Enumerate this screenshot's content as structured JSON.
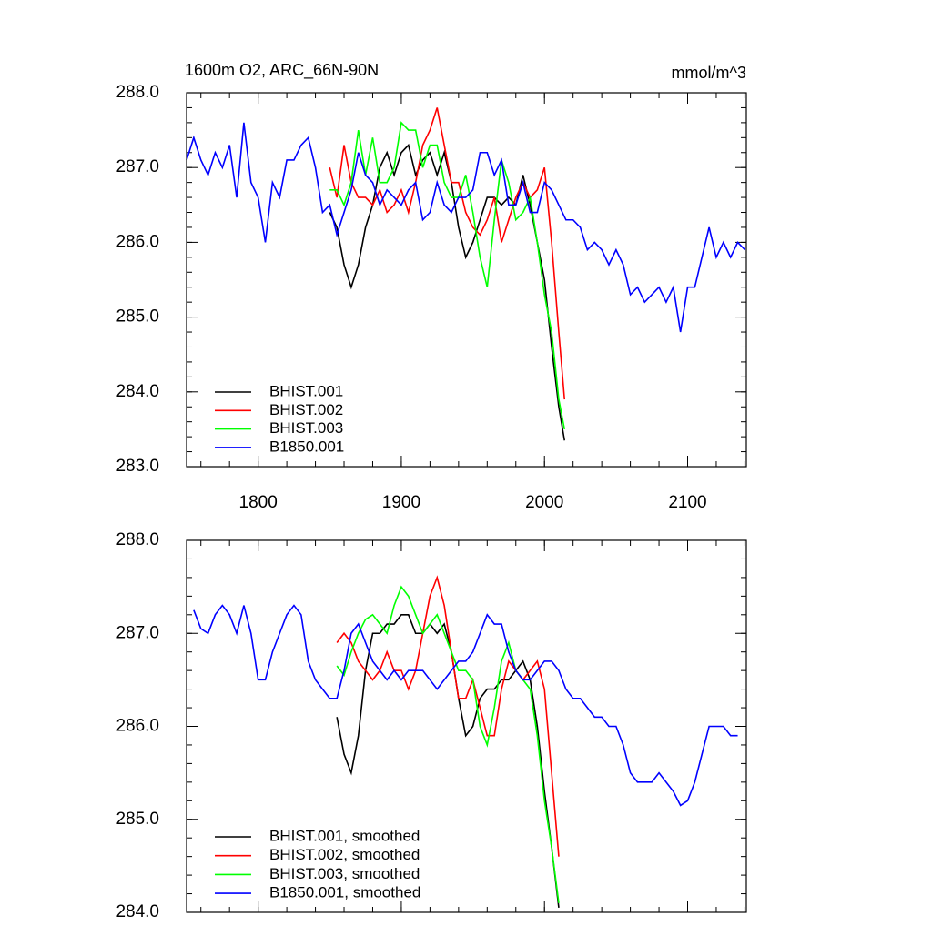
{
  "chart_data": [
    {
      "type": "line",
      "title": "1600m O2, ARC_66N-90N",
      "units": "mmol/m^3",
      "xlim": [
        1750,
        2141
      ],
      "xticks": [
        1800,
        1900,
        2000,
        2100
      ],
      "ylim": [
        283,
        288
      ],
      "yticks": [
        {
          "value": 283,
          "label": "283.0"
        },
        {
          "value": 284,
          "label": "284.0"
        },
        {
          "value": 285,
          "label": "285.0"
        },
        {
          "value": 286,
          "label": "286.0"
        },
        {
          "value": 287,
          "label": "287.0"
        },
        {
          "value": 288,
          "label": "288.0"
        }
      ],
      "legend": "lower left",
      "series": [
        {
          "name": "BHIST.001",
          "color": "#000000",
          "x": [
            1850,
            1855,
            1860,
            1865,
            1870,
            1875,
            1880,
            1885,
            1890,
            1895,
            1900,
            1905,
            1910,
            1915,
            1920,
            1925,
            1930,
            1935,
            1940,
            1945,
            1950,
            1955,
            1960,
            1965,
            1970,
            1975,
            1980,
            1985,
            1990,
            1995,
            2000,
            2005,
            2010,
            2014
          ],
          "values": [
            286.4,
            286.2,
            285.7,
            285.4,
            285.7,
            286.2,
            286.5,
            287.0,
            287.2,
            286.9,
            287.2,
            287.3,
            286.9,
            287.1,
            287.2,
            286.9,
            287.2,
            286.8,
            286.2,
            285.8,
            286.0,
            286.3,
            286.6,
            286.6,
            286.5,
            286.6,
            286.5,
            286.9,
            286.5,
            286.0,
            285.5,
            284.6,
            283.8,
            283.35
          ]
        },
        {
          "name": "BHIST.002",
          "color": "#ff0000",
          "x": [
            1850,
            1855,
            1860,
            1865,
            1870,
            1875,
            1880,
            1885,
            1890,
            1895,
            1900,
            1905,
            1910,
            1915,
            1920,
            1925,
            1930,
            1935,
            1940,
            1945,
            1950,
            1955,
            1960,
            1965,
            1970,
            1975,
            1980,
            1985,
            1990,
            1995,
            2000,
            2005,
            2010,
            2014
          ],
          "values": [
            287.0,
            286.6,
            287.3,
            286.8,
            286.6,
            286.6,
            286.5,
            286.7,
            286.4,
            286.5,
            286.7,
            286.4,
            286.8,
            287.3,
            287.5,
            287.8,
            287.3,
            286.8,
            286.8,
            286.4,
            286.2,
            286.1,
            286.3,
            286.6,
            286.0,
            286.3,
            286.6,
            286.8,
            286.6,
            286.7,
            287.0,
            286.0,
            284.8,
            283.9
          ]
        },
        {
          "name": "BHIST.003",
          "color": "#00ff00",
          "x": [
            1850,
            1855,
            1860,
            1865,
            1870,
            1875,
            1880,
            1885,
            1890,
            1895,
            1900,
            1905,
            1910,
            1915,
            1920,
            1925,
            1930,
            1935,
            1940,
            1945,
            1950,
            1955,
            1960,
            1965,
            1970,
            1975,
            1980,
            1985,
            1990,
            1995,
            2000,
            2005,
            2010,
            2014
          ],
          "values": [
            286.7,
            286.7,
            286.5,
            286.8,
            287.5,
            286.9,
            287.4,
            286.8,
            286.8,
            287.0,
            287.6,
            287.5,
            287.5,
            287.0,
            287.3,
            287.3,
            286.8,
            286.6,
            286.6,
            286.9,
            286.4,
            285.8,
            285.4,
            286.3,
            287.1,
            286.8,
            286.3,
            286.4,
            286.6,
            286.0,
            285.3,
            284.8,
            283.9,
            283.5
          ]
        },
        {
          "name": "B1850.001",
          "color": "#0000ff",
          "x": [
            1750,
            1755,
            1760,
            1765,
            1770,
            1775,
            1780,
            1785,
            1790,
            1795,
            1800,
            1805,
            1810,
            1815,
            1820,
            1825,
            1830,
            1835,
            1840,
            1845,
            1850,
            1855,
            1860,
            1865,
            1870,
            1875,
            1880,
            1885,
            1890,
            1895,
            1900,
            1905,
            1910,
            1915,
            1920,
            1925,
            1930,
            1935,
            1940,
            1945,
            1950,
            1955,
            1960,
            1965,
            1970,
            1975,
            1980,
            1985,
            1990,
            1995,
            2000,
            2005,
            2010,
            2015,
            2020,
            2025,
            2030,
            2035,
            2040,
            2045,
            2050,
            2055,
            2060,
            2065,
            2070,
            2075,
            2080,
            2085,
            2090,
            2095,
            2100,
            2105,
            2110,
            2115,
            2120,
            2125,
            2130,
            2135,
            2140
          ],
          "values": [
            287.1,
            287.4,
            287.1,
            286.9,
            287.2,
            287.0,
            287.3,
            286.6,
            287.6,
            286.8,
            286.6,
            286.0,
            286.8,
            286.6,
            287.1,
            287.1,
            287.3,
            287.4,
            287.0,
            286.4,
            286.5,
            286.1,
            286.4,
            286.7,
            287.2,
            286.9,
            286.8,
            286.5,
            286.7,
            286.6,
            286.5,
            286.7,
            286.8,
            286.3,
            286.4,
            286.8,
            286.5,
            286.4,
            286.6,
            286.6,
            286.7,
            287.2,
            287.2,
            286.9,
            287.1,
            286.5,
            286.5,
            286.8,
            286.4,
            286.4,
            286.8,
            286.7,
            286.5,
            286.3,
            286.3,
            286.2,
            285.9,
            286.0,
            285.9,
            285.7,
            285.9,
            285.7,
            285.3,
            285.4,
            285.2,
            285.3,
            285.4,
            285.2,
            285.4,
            284.8,
            285.4,
            285.4,
            285.8,
            286.2,
            285.8,
            286.0,
            285.8,
            286.0,
            285.9
          ]
        }
      ]
    },
    {
      "type": "line",
      "xlim": [
        1750,
        2141
      ],
      "xticks": [
        1800,
        1900,
        2000,
        2100
      ],
      "ylim": [
        284,
        288
      ],
      "yticks": [
        {
          "value": 284,
          "label": "284.0"
        },
        {
          "value": 285,
          "label": "285.0"
        },
        {
          "value": 286,
          "label": "286.0"
        },
        {
          "value": 287,
          "label": "287.0"
        },
        {
          "value": 288,
          "label": "288.0"
        }
      ],
      "legend": "lower left",
      "series": [
        {
          "name": "BHIST.001, smoothed",
          "color": "#000000",
          "x": [
            1855,
            1860,
            1865,
            1870,
            1875,
            1880,
            1885,
            1890,
            1895,
            1900,
            1905,
            1910,
            1915,
            1920,
            1925,
            1930,
            1935,
            1940,
            1945,
            1950,
            1955,
            1960,
            1965,
            1970,
            1975,
            1980,
            1985,
            1990,
            1995,
            2000,
            2005,
            2010
          ],
          "values": [
            286.1,
            285.7,
            285.5,
            285.9,
            286.6,
            287.0,
            287.0,
            287.1,
            287.1,
            287.2,
            287.2,
            287.0,
            287.0,
            287.1,
            287.0,
            287.1,
            286.8,
            286.3,
            285.9,
            286.0,
            286.3,
            286.4,
            286.4,
            286.5,
            286.5,
            286.6,
            286.7,
            286.5,
            286.0,
            285.3,
            284.7,
            284.05
          ]
        },
        {
          "name": "BHIST.002, smoothed",
          "color": "#ff0000",
          "x": [
            1855,
            1860,
            1865,
            1870,
            1875,
            1880,
            1885,
            1890,
            1895,
            1900,
            1905,
            1910,
            1915,
            1920,
            1925,
            1930,
            1935,
            1940,
            1945,
            1950,
            1955,
            1960,
            1965,
            1970,
            1975,
            1980,
            1985,
            1990,
            1995,
            2000,
            2005,
            2010
          ],
          "values": [
            286.9,
            287.0,
            286.9,
            286.7,
            286.6,
            286.5,
            286.6,
            286.8,
            286.6,
            286.6,
            286.4,
            286.6,
            287.0,
            287.4,
            287.6,
            287.3,
            286.8,
            286.3,
            286.3,
            286.5,
            286.2,
            285.9,
            285.9,
            286.4,
            286.7,
            286.6,
            286.5,
            286.6,
            286.7,
            286.4,
            285.5,
            284.6
          ]
        },
        {
          "name": "BHIST.003, smoothed",
          "color": "#00ff00",
          "x": [
            1855,
            1860,
            1865,
            1870,
            1875,
            1880,
            1885,
            1890,
            1895,
            1900,
            1905,
            1910,
            1915,
            1920,
            1925,
            1930,
            1935,
            1940,
            1945,
            1950,
            1955,
            1960,
            1965,
            1970,
            1975,
            1980,
            1985,
            1990,
            1995,
            2000,
            2005,
            2010
          ],
          "values": [
            286.65,
            286.55,
            286.8,
            287.0,
            287.15,
            287.2,
            287.1,
            287.0,
            287.3,
            287.5,
            287.4,
            287.2,
            287.0,
            287.1,
            287.2,
            287.0,
            286.8,
            286.6,
            286.6,
            286.5,
            286.0,
            285.8,
            286.2,
            286.7,
            286.9,
            286.6,
            286.5,
            286.4,
            285.9,
            285.2,
            284.7,
            284.1
          ]
        },
        {
          "name": "B1850.001, smoothed",
          "color": "#0000ff",
          "x": [
            1755,
            1760,
            1765,
            1770,
            1775,
            1780,
            1785,
            1790,
            1795,
            1800,
            1805,
            1810,
            1815,
            1820,
            1825,
            1830,
            1835,
            1840,
            1845,
            1850,
            1855,
            1860,
            1865,
            1870,
            1875,
            1880,
            1885,
            1890,
            1895,
            1900,
            1905,
            1910,
            1915,
            1920,
            1925,
            1930,
            1935,
            1940,
            1945,
            1950,
            1955,
            1960,
            1965,
            1970,
            1975,
            1980,
            1985,
            1990,
            1995,
            2000,
            2005,
            2010,
            2015,
            2020,
            2025,
            2030,
            2035,
            2040,
            2045,
            2050,
            2055,
            2060,
            2065,
            2070,
            2075,
            2080,
            2085,
            2090,
            2095,
            2100,
            2105,
            2110,
            2115,
            2120,
            2125,
            2130,
            2135
          ],
          "values": [
            287.25,
            287.05,
            287.0,
            287.2,
            287.3,
            287.2,
            287.0,
            287.3,
            287.0,
            286.5,
            286.5,
            286.8,
            287.0,
            287.2,
            287.3,
            287.2,
            286.7,
            286.5,
            286.4,
            286.3,
            286.3,
            286.6,
            287.0,
            287.1,
            286.9,
            286.7,
            286.6,
            286.5,
            286.6,
            286.5,
            286.6,
            286.6,
            286.6,
            286.5,
            286.4,
            286.5,
            286.6,
            286.7,
            286.7,
            286.8,
            287.0,
            287.2,
            287.1,
            287.1,
            286.8,
            286.6,
            286.5,
            286.5,
            286.6,
            286.7,
            286.7,
            286.6,
            286.4,
            286.3,
            286.3,
            286.2,
            286.1,
            286.1,
            286.0,
            286.0,
            285.8,
            285.5,
            285.4,
            285.4,
            285.4,
            285.5,
            285.4,
            285.3,
            285.15,
            285.2,
            285.4,
            285.7,
            286.0,
            286.0,
            286.0,
            285.9,
            285.9
          ]
        }
      ]
    }
  ]
}
